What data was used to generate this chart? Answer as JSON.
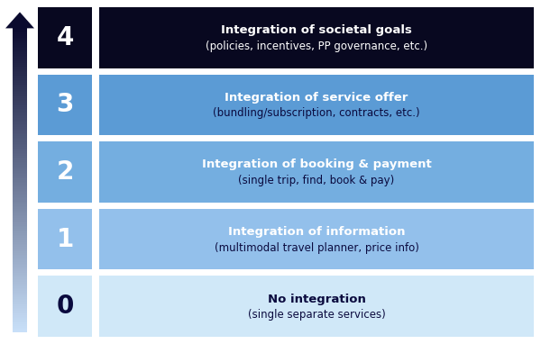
{
  "rows": [
    {
      "level": "4",
      "title": "Integration of societal goals",
      "subtitle": "(policies, incentives, PP governance, etc.)",
      "box_color": "#080820",
      "num_color": "#ffffff",
      "title_color": "#ffffff",
      "subtitle_color": "#ffffff"
    },
    {
      "level": "3",
      "title": "Integration of service offer",
      "subtitle": "(bundling/subscription, contracts, etc.)",
      "box_color": "#5b9bd5",
      "num_color": "#ffffff",
      "title_color": "#ffffff",
      "subtitle_color": "#0a0a3e"
    },
    {
      "level": "2",
      "title": "Integration of booking & payment",
      "subtitle": "(single trip, find, book & pay)",
      "box_color": "#74aee0",
      "num_color": "#ffffff",
      "title_color": "#ffffff",
      "subtitle_color": "#0a0a3e"
    },
    {
      "level": "1",
      "title": "Integration of information",
      "subtitle": "(multimodal travel planner, price info)",
      "box_color": "#93c0eb",
      "num_color": "#ffffff",
      "title_color": "#ffffff",
      "subtitle_color": "#0a0a3e"
    },
    {
      "level": "0",
      "title": "No integration",
      "subtitle": "(single separate services)",
      "box_color": "#d0e8f8",
      "num_color": "#0a0a3e",
      "title_color": "#0a0a3e",
      "subtitle_color": "#0a0a3e"
    }
  ],
  "bg_color": "#ffffff",
  "arrow_color_top": "#0a0a2e",
  "arrow_color_bottom": "#c8dff8",
  "fig_width": 6.0,
  "fig_height": 3.82
}
